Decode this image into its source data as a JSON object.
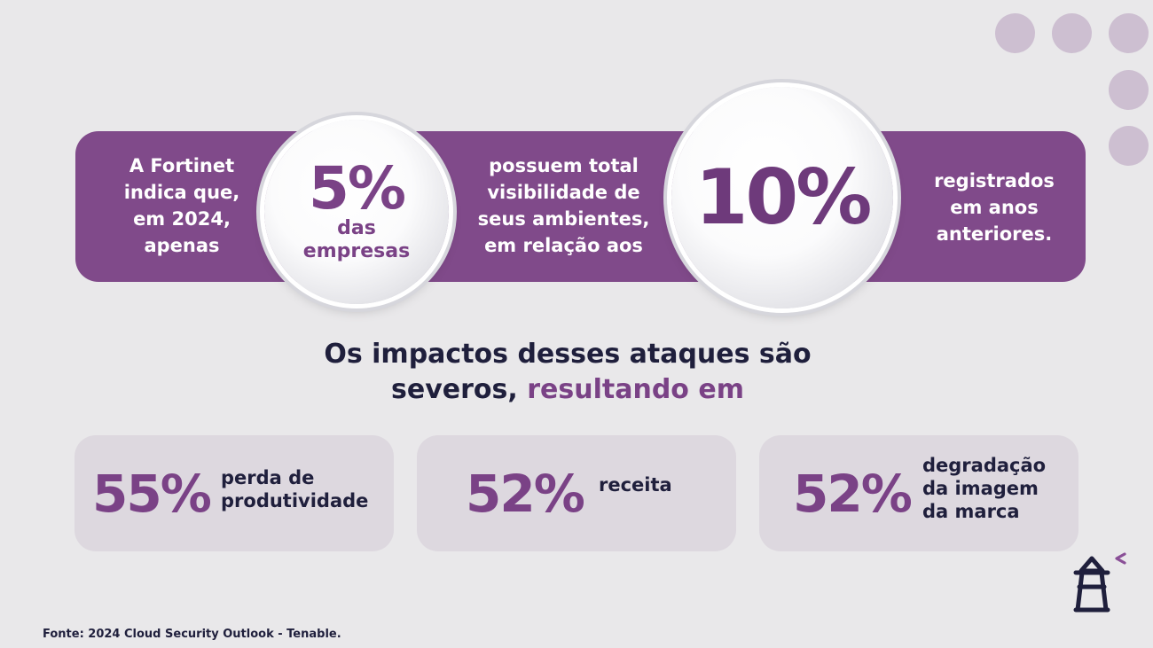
{
  "band": {
    "left_text": "A Fortinet indica que, em 2024, apenas",
    "circle1_value": "5%",
    "circle1_label": "das empresas",
    "middle_text": "possuem total visibilidade de seus ambientes, em relação aos",
    "circle2_value": "10%",
    "right_text": "registrados em anos anteriores."
  },
  "headline": {
    "part1": "Os impactos desses ataques são severos,",
    "accent": "resultando em"
  },
  "stats": [
    {
      "value": "55%",
      "label": "perda de produtividade"
    },
    {
      "value": "52%",
      "label": "receita"
    },
    {
      "value": "52%",
      "label": "degradação da imagem da marca"
    }
  ],
  "source": "Fonte: 2024 Cloud Security Outlook - Tenable.",
  "colors": {
    "background": "#e9e8ea",
    "purple": "#804a8a",
    "accent_text": "#7a4286",
    "dark_text": "#1f1f3c",
    "card": "#ddd8df",
    "dots": "#cdbfd1"
  },
  "icons": {
    "logo": "lighthouse-icon",
    "decoration": "dot-grid"
  }
}
